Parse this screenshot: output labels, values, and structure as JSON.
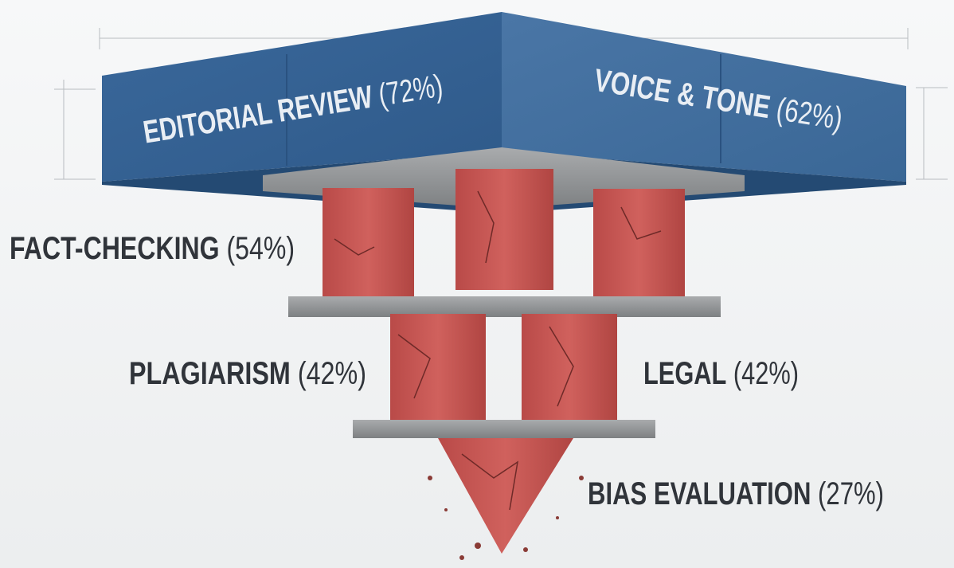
{
  "layers": [
    {
      "name": "EDITORIAL REVIEW",
      "value": "(72%)"
    },
    {
      "name": "VOICE & TONE",
      "value": "(62%)"
    },
    {
      "name": "FACT-CHECKING",
      "value": "(54%)"
    },
    {
      "name": "PLAGIARISM",
      "value": "(42%)"
    },
    {
      "name": "LEGAL",
      "value": "(42%)"
    },
    {
      "name": "BIAS EVALUATION",
      "value": "(27%)"
    }
  ]
}
